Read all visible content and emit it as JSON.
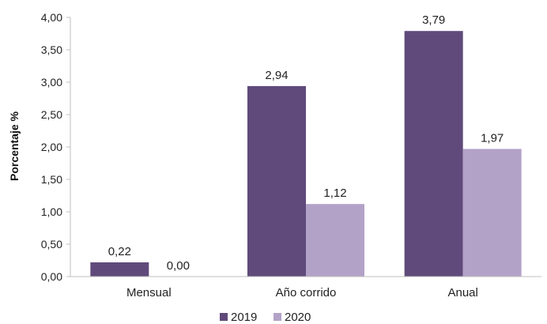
{
  "chart_data": {
    "type": "bar",
    "categories": [
      "Mensual",
      "Año corrido",
      "Anual"
    ],
    "series": [
      {
        "name": "2019",
        "color": "#604a7b",
        "values": [
          0.22,
          2.94,
          3.79
        ],
        "labels": [
          "0,22",
          "2,94",
          "3,79"
        ]
      },
      {
        "name": "2020",
        "color": "#b3a2c7",
        "values": [
          0.0,
          1.12,
          1.97
        ],
        "labels": [
          "0,00",
          "1,12",
          "1,97"
        ]
      }
    ],
    "ylabel": "Porcentaje %",
    "xlabel": "",
    "title": "",
    "ylim": [
      0,
      4
    ],
    "yticks": [
      0,
      0.5,
      1,
      1.5,
      2,
      2.5,
      3,
      3.5,
      4
    ],
    "ytick_labels": [
      "0,00",
      "0,50",
      "1,00",
      "1,50",
      "2,00",
      "2,50",
      "3,00",
      "3,50",
      "4,00"
    ],
    "grid": false,
    "legend_position": "bottom"
  }
}
